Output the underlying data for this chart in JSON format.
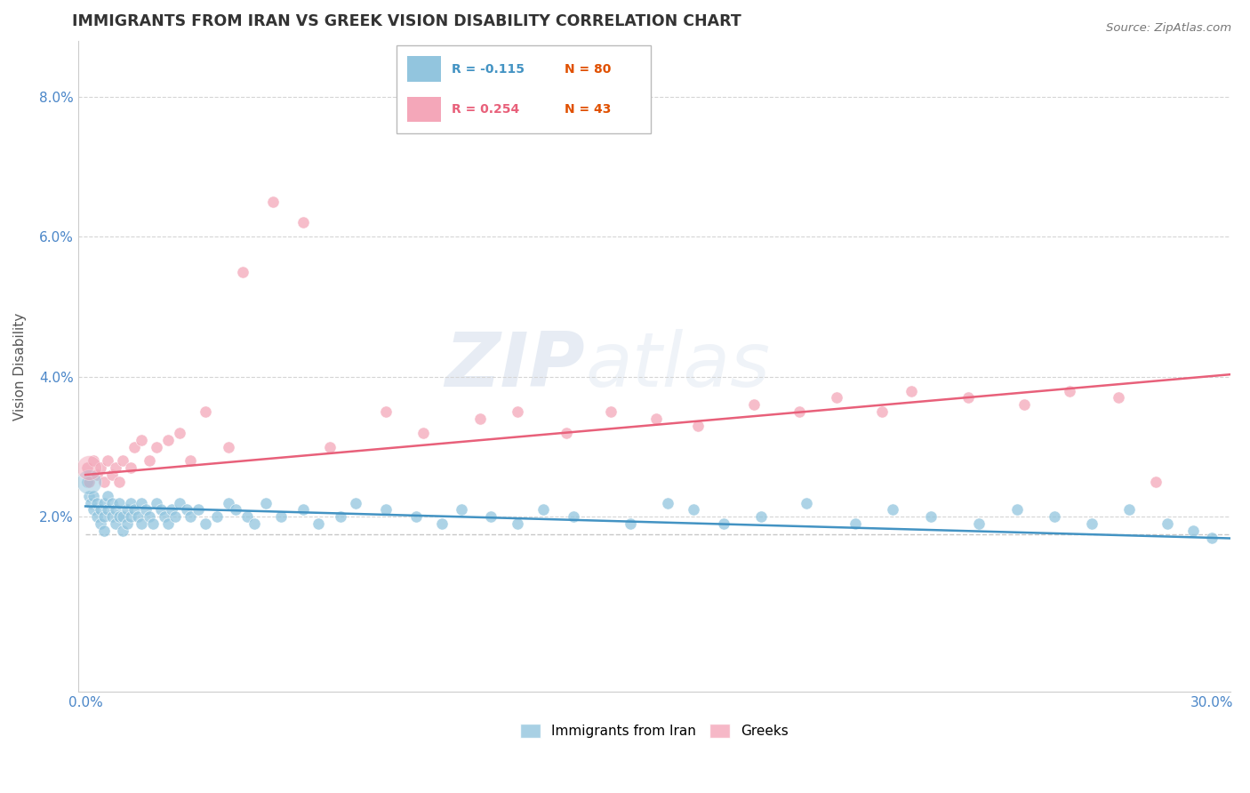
{
  "title": "IMMIGRANTS FROM IRAN VS GREEK VISION DISABILITY CORRELATION CHART",
  "source": "Source: ZipAtlas.com",
  "xlabel_label": "Immigrants from Iran",
  "xlabel_label2": "Greeks",
  "ylabel": "Vision Disability",
  "xlim": [
    -0.002,
    0.305
  ],
  "ylim": [
    -0.005,
    0.088
  ],
  "xticks": [
    0.0,
    0.05,
    0.1,
    0.15,
    0.2,
    0.25,
    0.3
  ],
  "xticklabels": [
    "0.0%",
    "",
    "",
    "",
    "",
    "",
    "30.0%"
  ],
  "yticks": [
    0.0,
    0.02,
    0.04,
    0.06,
    0.08
  ],
  "yticklabels": [
    "",
    "2.0%",
    "4.0%",
    "6.0%",
    "8.0%"
  ],
  "legend_r1": "R = -0.115",
  "legend_n1": "N = 80",
  "legend_r2": "R = 0.254",
  "legend_n2": "N = 43",
  "color_blue": "#92c5de",
  "color_pink": "#f4a7b9",
  "color_blue_line": "#4393c3",
  "color_pink_line": "#e8607a",
  "color_n": "#e05000",
  "watermark_zip": "ZIP",
  "watermark_atlas": "atlas",
  "blue_x": [
    0.0005,
    0.001,
    0.0015,
    0.002,
    0.002,
    0.003,
    0.003,
    0.004,
    0.004,
    0.005,
    0.005,
    0.005,
    0.006,
    0.006,
    0.007,
    0.007,
    0.008,
    0.008,
    0.009,
    0.009,
    0.01,
    0.01,
    0.011,
    0.011,
    0.012,
    0.012,
    0.013,
    0.014,
    0.015,
    0.015,
    0.016,
    0.017,
    0.018,
    0.019,
    0.02,
    0.021,
    0.022,
    0.023,
    0.024,
    0.025,
    0.027,
    0.028,
    0.03,
    0.032,
    0.035,
    0.038,
    0.04,
    0.043,
    0.045,
    0.048,
    0.052,
    0.058,
    0.062,
    0.068,
    0.072,
    0.08,
    0.088,
    0.095,
    0.1,
    0.108,
    0.115,
    0.122,
    0.13,
    0.145,
    0.155,
    0.162,
    0.17,
    0.18,
    0.192,
    0.205,
    0.215,
    0.225,
    0.238,
    0.248,
    0.258,
    0.268,
    0.278,
    0.288,
    0.295,
    0.3
  ],
  "blue_y": [
    0.025,
    0.023,
    0.022,
    0.021,
    0.023,
    0.02,
    0.022,
    0.019,
    0.021,
    0.02,
    0.022,
    0.018,
    0.021,
    0.023,
    0.02,
    0.022,
    0.019,
    0.021,
    0.02,
    0.022,
    0.018,
    0.02,
    0.021,
    0.019,
    0.02,
    0.022,
    0.021,
    0.02,
    0.022,
    0.019,
    0.021,
    0.02,
    0.019,
    0.022,
    0.021,
    0.02,
    0.019,
    0.021,
    0.02,
    0.022,
    0.021,
    0.02,
    0.021,
    0.019,
    0.02,
    0.022,
    0.021,
    0.02,
    0.019,
    0.022,
    0.02,
    0.021,
    0.019,
    0.02,
    0.022,
    0.021,
    0.02,
    0.019,
    0.021,
    0.02,
    0.019,
    0.021,
    0.02,
    0.019,
    0.022,
    0.021,
    0.019,
    0.02,
    0.022,
    0.019,
    0.021,
    0.02,
    0.019,
    0.021,
    0.02,
    0.019,
    0.021,
    0.019,
    0.018,
    0.017
  ],
  "pink_x": [
    0.0005,
    0.001,
    0.002,
    0.003,
    0.004,
    0.005,
    0.006,
    0.007,
    0.008,
    0.009,
    0.01,
    0.012,
    0.013,
    0.015,
    0.017,
    0.019,
    0.022,
    0.025,
    0.028,
    0.032,
    0.038,
    0.042,
    0.05,
    0.058,
    0.065,
    0.08,
    0.09,
    0.105,
    0.115,
    0.128,
    0.14,
    0.152,
    0.163,
    0.178,
    0.19,
    0.2,
    0.212,
    0.22,
    0.235,
    0.25,
    0.262,
    0.275,
    0.285
  ],
  "pink_y": [
    0.027,
    0.025,
    0.028,
    0.026,
    0.027,
    0.025,
    0.028,
    0.026,
    0.027,
    0.025,
    0.028,
    0.027,
    0.03,
    0.031,
    0.028,
    0.03,
    0.031,
    0.032,
    0.028,
    0.035,
    0.03,
    0.055,
    0.065,
    0.062,
    0.03,
    0.035,
    0.032,
    0.034,
    0.035,
    0.032,
    0.035,
    0.034,
    0.033,
    0.036,
    0.035,
    0.037,
    0.035,
    0.038,
    0.037,
    0.036,
    0.038,
    0.037,
    0.025
  ]
}
